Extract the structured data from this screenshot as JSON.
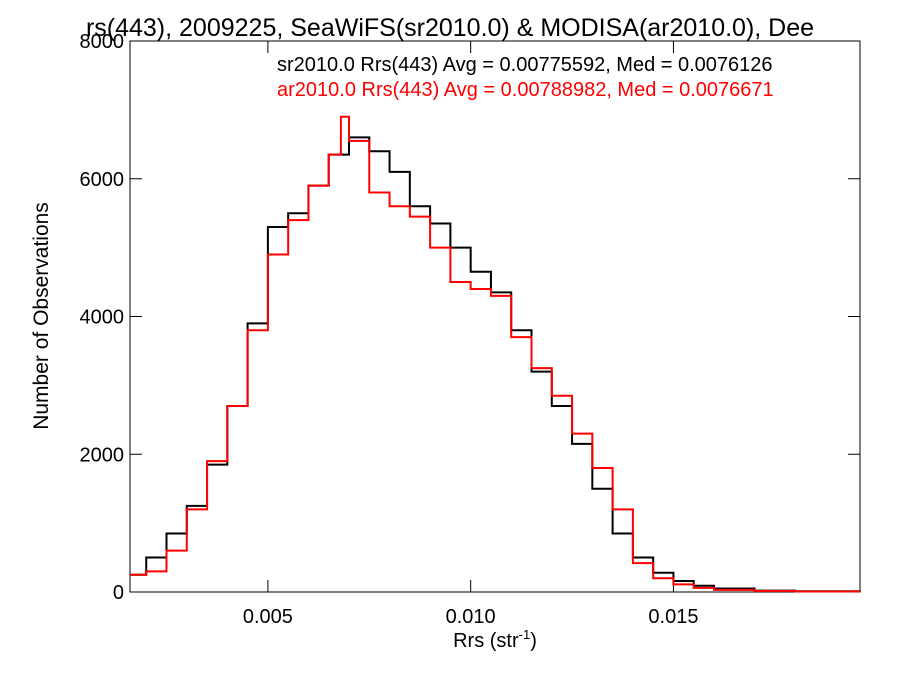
{
  "chart_data": {
    "type": "line",
    "title": "rs(443), 2009225, SeaWiFS(sr2010.0) & MODISA(ar2010.0), Dee",
    "xlabel": "Rrs (str",
    "xlabel_superscript": "-1",
    "xlabel_suffix": ")",
    "ylabel": "Number of Observations",
    "xlim": [
      0.0016,
      0.0196
    ],
    "ylim": [
      0,
      8000
    ],
    "xticks": [
      {
        "value": 0.005,
        "label": "0.005"
      },
      {
        "value": 0.01,
        "label": "0.010"
      },
      {
        "value": 0.015,
        "label": "0.015"
      }
    ],
    "yticks": [
      {
        "value": 0,
        "label": "0"
      },
      {
        "value": 2000,
        "label": "2000"
      },
      {
        "value": 4000,
        "label": "4000"
      },
      {
        "value": 6000,
        "label": "6000"
      },
      {
        "value": 8000,
        "label": "8000"
      }
    ],
    "grid": false,
    "legend": "top-right",
    "series": [
      {
        "name": "sr2010.0",
        "color": "#000000",
        "label": "sr2010.0 Rrs(443) Avg = 0.00775592, Med = 0.0076126",
        "x": [
          0.0016,
          0.002,
          0.0025,
          0.003,
          0.0035,
          0.004,
          0.0045,
          0.005,
          0.0055,
          0.006,
          0.0065,
          0.007,
          0.0075,
          0.008,
          0.0085,
          0.009,
          0.0095,
          0.01,
          0.0105,
          0.011,
          0.0115,
          0.012,
          0.0125,
          0.013,
          0.0135,
          0.014,
          0.0145,
          0.015,
          0.0155,
          0.016,
          0.017,
          0.018,
          0.0196
        ],
        "y": [
          250,
          500,
          850,
          1250,
          1850,
          2700,
          3900,
          5300,
          5500,
          5900,
          6350,
          6600,
          6400,
          6100,
          5600,
          5350,
          5000,
          4650,
          4350,
          3800,
          3200,
          2700,
          2150,
          1500,
          850,
          500,
          280,
          160,
          90,
          50,
          20,
          10,
          5
        ]
      },
      {
        "name": "ar2010.0",
        "color": "#ff0000",
        "label": "ar2010.0 Rrs(443) Avg = 0.00788982, Med = 0.0076671",
        "x": [
          0.0016,
          0.002,
          0.0025,
          0.003,
          0.0035,
          0.004,
          0.0045,
          0.005,
          0.0055,
          0.006,
          0.0065,
          0.0068,
          0.007,
          0.0075,
          0.008,
          0.0085,
          0.009,
          0.0095,
          0.01,
          0.0105,
          0.011,
          0.0115,
          0.012,
          0.0125,
          0.013,
          0.0135,
          0.014,
          0.0145,
          0.015,
          0.0155,
          0.016,
          0.017,
          0.018,
          0.0196
        ],
        "y": [
          250,
          300,
          600,
          1200,
          1900,
          2700,
          3800,
          4900,
          5400,
          5900,
          6350,
          6900,
          6550,
          5800,
          5600,
          5450,
          5000,
          4500,
          4400,
          4300,
          3700,
          3250,
          2850,
          2300,
          1800,
          1200,
          420,
          200,
          110,
          60,
          30,
          15,
          8,
          5
        ]
      }
    ]
  }
}
